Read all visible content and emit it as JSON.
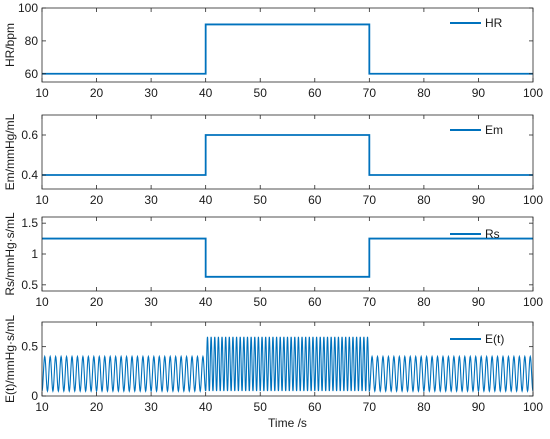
{
  "chart_data": [
    {
      "type": "line",
      "ylabel": "HR/bpm",
      "xlabel": "",
      "xlim": [
        10,
        100
      ],
      "ylim": [
        55,
        100
      ],
      "yticks": [
        "60",
        "80",
        "100"
      ],
      "ytick_values": [
        60,
        80,
        100
      ],
      "xticks": [
        "10",
        "20",
        "30",
        "40",
        "50",
        "60",
        "70",
        "80",
        "90",
        "100"
      ],
      "legend": "top-right",
      "series": [
        {
          "name": "HR",
          "color": "#0072BD",
          "x": [
            10,
            40,
            40,
            70,
            70,
            100
          ],
          "y": [
            60,
            60,
            90,
            90,
            60,
            60
          ]
        }
      ]
    },
    {
      "type": "line",
      "ylabel": "Em/mmHg/mL",
      "xlabel": "",
      "xlim": [
        10,
        100
      ],
      "ylim": [
        0.33,
        0.7
      ],
      "yticks": [
        "0.4",
        "0.6"
      ],
      "ytick_values": [
        0.4,
        0.6
      ],
      "xticks": [
        "10",
        "20",
        "30",
        "40",
        "50",
        "60",
        "70",
        "80",
        "90",
        "100"
      ],
      "legend": "top-right",
      "series": [
        {
          "name": "Em",
          "color": "#0072BD",
          "x": [
            10,
            40,
            40,
            70,
            70,
            100
          ],
          "y": [
            0.4,
            0.4,
            0.6,
            0.6,
            0.4,
            0.4
          ]
        }
      ]
    },
    {
      "type": "line",
      "ylabel": "Rs/mmHg·s/mL",
      "xlabel": "",
      "xlim": [
        10,
        100
      ],
      "ylim": [
        0.4,
        1.6
      ],
      "yticks": [
        "0.5",
        "1",
        "1.5"
      ],
      "ytick_values": [
        0.5,
        1,
        1.5
      ],
      "xticks": [
        "10",
        "20",
        "30",
        "40",
        "50",
        "60",
        "70",
        "80",
        "90",
        "100"
      ],
      "legend": "top-right",
      "series": [
        {
          "name": "Rs",
          "color": "#0072BD",
          "x": [
            10,
            40,
            40,
            70,
            70,
            100
          ],
          "y": [
            1.25,
            1.25,
            0.63,
            0.63,
            1.25,
            1.25
          ]
        }
      ]
    },
    {
      "type": "line",
      "ylabel": "E(t)/mmHg·s/mL",
      "xlabel": "Time /s",
      "xlim": [
        10,
        100
      ],
      "ylim": [
        0,
        0.75
      ],
      "yticks": [
        "0",
        "0.5"
      ],
      "ytick_values": [
        0,
        0.5
      ],
      "xticks": [
        "10",
        "20",
        "30",
        "40",
        "50",
        "60",
        "70",
        "80",
        "90",
        "100"
      ],
      "legend": "top-right",
      "series": [
        {
          "name": "E(t)",
          "color": "#0072BD",
          "waveform": "periodic",
          "baseline": 0.05,
          "segments": [
            {
              "x_start": 10,
              "x_end": 40,
              "period": 1.0,
              "peak": 0.4
            },
            {
              "x_start": 40,
              "x_end": 70,
              "period": 0.6667,
              "peak": 0.6
            },
            {
              "x_start": 70,
              "x_end": 100,
              "period": 1.0,
              "peak": 0.4
            }
          ]
        }
      ]
    }
  ]
}
